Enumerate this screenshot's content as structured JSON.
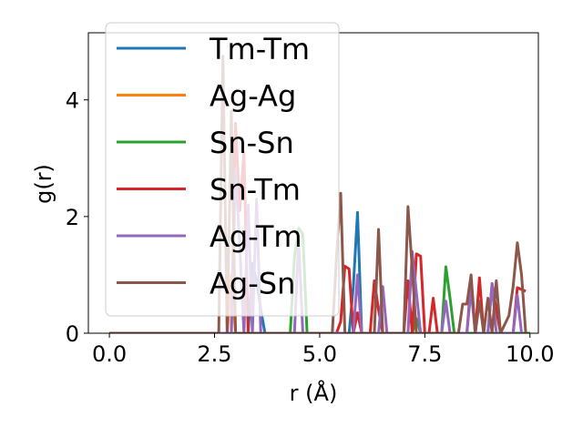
{
  "chart_data": {
    "type": "line",
    "title": "",
    "xlabel": "r (Å)",
    "ylabel": "g(r)",
    "xlim": [
      -0.5,
      10.2
    ],
    "ylim": [
      0,
      5.15
    ],
    "xticks": [
      0.0,
      2.5,
      5.0,
      7.5,
      10.0
    ],
    "xtick_labels": [
      "0.0",
      "2.5",
      "5.0",
      "7.5",
      "10.0"
    ],
    "yticks": [
      0,
      2,
      4
    ],
    "ytick_labels": [
      "0",
      "2",
      "4"
    ],
    "grid": false,
    "legend_position": "top-left",
    "series": [
      {
        "name": "Tm-Tm",
        "color": "#1f77b4",
        "x": [
          0.0,
          3.3,
          3.4,
          3.5,
          3.6,
          3.7,
          5.7,
          5.8,
          5.9,
          6.0,
          10.0
        ],
        "y": [
          0,
          0,
          1.2,
          0.9,
          0.4,
          0,
          0,
          0.8,
          2.07,
          0,
          0
        ]
      },
      {
        "name": "Ag-Ag",
        "color": "#ff7f0e",
        "x": [
          0.0,
          2.8,
          2.9,
          3.0,
          10.0
        ],
        "y": [
          0,
          0,
          1.0,
          0,
          0
        ]
      },
      {
        "name": "Sn-Sn",
        "color": "#2ca02c",
        "x": [
          0.0,
          4.3,
          4.4,
          4.5,
          4.6,
          4.7,
          7.2,
          7.3,
          7.4,
          7.9,
          8.0,
          8.1,
          8.2,
          10.0
        ],
        "y": [
          0,
          0,
          1.3,
          1.8,
          1.7,
          0,
          0,
          0.25,
          0,
          0,
          1.14,
          0.6,
          0,
          0
        ]
      },
      {
        "name": "Sn-Tm",
        "color": "#d62728",
        "x": [
          0.0,
          2.9,
          3.0,
          3.1,
          3.2,
          3.3,
          3.4,
          5.4,
          5.5,
          5.6,
          5.7,
          5.8,
          5.9,
          6.0,
          6.2,
          6.3,
          6.4,
          6.5,
          6.9,
          7.0,
          7.1,
          7.2,
          7.3,
          7.4,
          7.5,
          7.6,
          7.7,
          7.8,
          7.9,
          8.0,
          8.1,
          8.5,
          8.6,
          8.7,
          8.8,
          8.9,
          9.0,
          9.1,
          9.2,
          9.3,
          9.4,
          9.5,
          9.6,
          9.7,
          9.8,
          9.9
        ],
        "y": [
          0,
          0,
          3.6,
          2.1,
          3.1,
          0,
          0,
          0,
          0.2,
          1.15,
          1.1,
          0,
          0.35,
          0,
          0,
          0.9,
          0.4,
          0,
          0,
          0,
          0.9,
          0,
          1.36,
          1.32,
          0,
          0,
          0.6,
          0,
          0,
          0,
          0,
          0,
          0.9,
          0,
          0.95,
          0,
          0,
          0.85,
          0.4,
          0,
          0,
          0,
          0,
          0.78,
          0.75,
          0.72
        ]
      },
      {
        "name": "Ag-Tm",
        "color": "#9467bd",
        "x": [
          0.0,
          2.9,
          3.0,
          3.1,
          3.2,
          3.3,
          3.4,
          3.5,
          3.6,
          4.4,
          4.5,
          4.6,
          5.8,
          5.9,
          6.0,
          6.4,
          6.5,
          6.6,
          7.1,
          7.2,
          7.3,
          7.4,
          7.9,
          8.0,
          8.1,
          8.5,
          8.6,
          8.7,
          9.0,
          9.1,
          9.2,
          9.6,
          9.7,
          9.8
        ],
        "y": [
          0,
          0,
          2.8,
          1.5,
          0,
          2.2,
          0,
          2.3,
          0,
          0,
          1.6,
          0,
          0,
          1.0,
          0,
          0,
          0.8,
          0,
          0,
          1.4,
          0.7,
          0,
          0,
          0.55,
          0,
          0,
          0.75,
          0,
          0,
          0.85,
          0,
          0,
          0.65,
          0
        ]
      },
      {
        "name": "Ag-Sn",
        "color": "#8c564b",
        "x": [
          0.0,
          2.6,
          2.7,
          2.8,
          2.9,
          3.0,
          5.3,
          5.4,
          5.5,
          5.6,
          6.2,
          6.3,
          6.4,
          6.5,
          6.9,
          7.0,
          7.1,
          7.2,
          7.3,
          7.4,
          7.5,
          7.6,
          8.3,
          8.4,
          8.5,
          8.6,
          8.7,
          8.8,
          8.9,
          9.0,
          9.1,
          9.2,
          9.3,
          9.5,
          9.6,
          9.7,
          9.8,
          9.9
        ],
        "y": [
          0,
          0,
          4.75,
          0,
          3.8,
          0,
          0,
          1.3,
          2.4,
          0,
          0,
          0,
          1.78,
          0,
          0,
          0,
          2.17,
          1.1,
          0,
          0,
          0,
          0,
          0,
          0.5,
          0.5,
          1.0,
          0,
          0.55,
          0,
          0.6,
          0,
          0.9,
          0,
          0.3,
          0.8,
          1.55,
          1.0,
          0
        ]
      }
    ]
  }
}
